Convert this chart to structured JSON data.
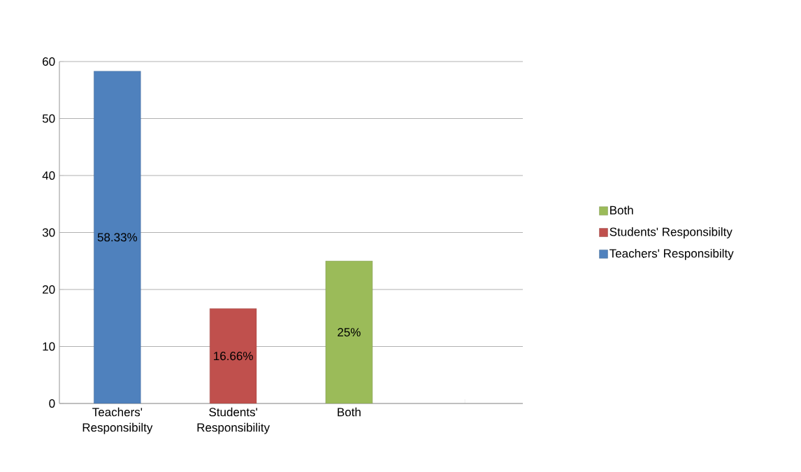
{
  "chart_data": {
    "type": "bar",
    "categories": [
      "Teachers' Responsibilty",
      "Students' Responsibility",
      "Both",
      null
    ],
    "series": [
      {
        "name": "Teachers' Responsibilty",
        "color": "#4f81bd",
        "values": [
          58.33,
          null,
          null,
          null
        ],
        "value_labels": [
          "58.33%",
          null,
          null,
          null
        ]
      },
      {
        "name": "Students' Responsibilty",
        "color": "#c0504d",
        "values": [
          null,
          16.66,
          null,
          null
        ],
        "value_labels": [
          null,
          "16.66%",
          null,
          null
        ]
      },
      {
        "name": "Both",
        "color": "#9bbb59",
        "values": [
          null,
          null,
          25,
          null
        ],
        "value_labels": [
          null,
          null,
          "25%",
          null
        ]
      }
    ],
    "ylim": [
      0,
      60
    ],
    "yticks": [
      0,
      10,
      20,
      30,
      40,
      50,
      60
    ],
    "grid": "y",
    "legend": "right"
  }
}
